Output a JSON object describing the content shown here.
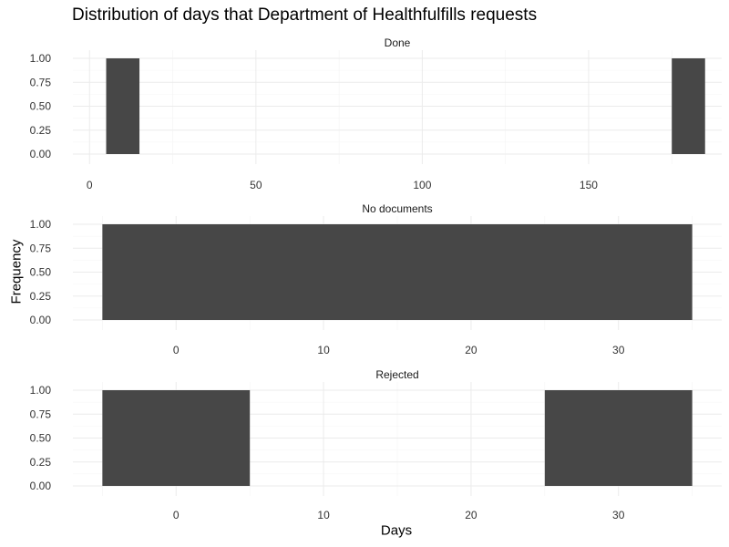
{
  "chart_data": {
    "type": "bar",
    "title": "Distribution of days that Department of Healthfulfills requests",
    "xlabel": "Days",
    "ylabel": "Frequency",
    "grid": true,
    "colors": {
      "bar": "#474747",
      "grid_major": "#ebebeb",
      "grid_minor": "#f4f4f4"
    },
    "y_ticks": [
      "0.00",
      "0.25",
      "0.50",
      "0.75",
      "1.00"
    ],
    "y_tick_values": [
      0,
      0.25,
      0.5,
      0.75,
      1
    ],
    "ylim": [
      0,
      1
    ],
    "panels": [
      {
        "strip": "Done",
        "xlim": [
          -5,
          190
        ],
        "x_ticks": [
          "0",
          "50",
          "100",
          "150"
        ],
        "x_tick_values": [
          0,
          50,
          100,
          150
        ],
        "x_minor": [
          25,
          75,
          125,
          175
        ],
        "bins": [
          {
            "x_start": 5,
            "x_end": 15,
            "value": 1
          },
          {
            "x_start": 175,
            "x_end": 185,
            "value": 1
          }
        ]
      },
      {
        "strip": "No documents",
        "xlim": [
          -7,
          37
        ],
        "x_ticks": [
          "0",
          "10",
          "20",
          "30"
        ],
        "x_tick_values": [
          0,
          10,
          20,
          30
        ],
        "x_minor": [
          -5,
          5,
          15,
          25,
          35
        ],
        "bins": [
          {
            "x_start": -5,
            "x_end": 35,
            "value": 1
          }
        ]
      },
      {
        "strip": "Rejected",
        "xlim": [
          -7,
          37
        ],
        "x_ticks": [
          "0",
          "10",
          "20",
          "30"
        ],
        "x_tick_values": [
          0,
          10,
          20,
          30
        ],
        "x_minor": [
          -5,
          5,
          15,
          25,
          35
        ],
        "bins": [
          {
            "x_start": -5,
            "x_end": 5,
            "value": 1
          },
          {
            "x_start": 25,
            "x_end": 35,
            "value": 1
          }
        ]
      }
    ]
  }
}
